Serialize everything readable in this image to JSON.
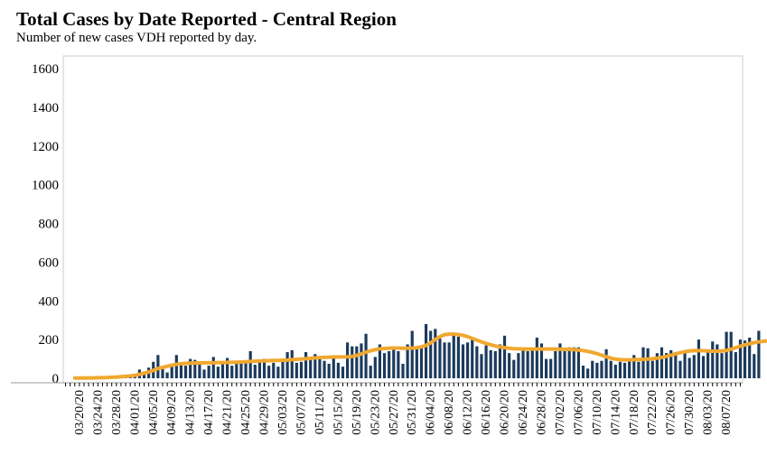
{
  "title": "Total Cases by Date Reported - Central Region",
  "subtitle": "Number of new cases VDH reported by day.",
  "chart_data": {
    "type": "bar",
    "title": "Total Cases by Date Reported - Central Region",
    "subtitle": "Number of new cases VDH reported by day.",
    "xlabel": "",
    "ylabel": "",
    "ylim": [
      0,
      1600
    ],
    "yticks": [
      0,
      200,
      400,
      600,
      800,
      1000,
      1200,
      1400,
      1600
    ],
    "grid": false,
    "legend": "none",
    "x_start": "03/17/20",
    "x_end": "08/10/20",
    "xtick_labels": [
      "03/20/20",
      "03/24/20",
      "03/28/20",
      "04/01/20",
      "04/05/20",
      "04/09/20",
      "04/13/20",
      "04/17/20",
      "04/21/20",
      "04/25/20",
      "04/29/20",
      "05/03/20",
      "05/07/20",
      "05/11/20",
      "05/15/20",
      "05/19/20",
      "05/23/20",
      "05/27/20",
      "05/31/20",
      "06/04/20",
      "06/08/20",
      "06/12/20",
      "06/16/20",
      "06/20/20",
      "06/24/20",
      "06/28/20",
      "07/02/20",
      "07/06/20",
      "07/10/20",
      "07/14/20",
      "07/18/20",
      "07/22/20",
      "07/26/20",
      "07/30/20",
      "08/03/20",
      "08/07/20"
    ],
    "bar_color": "#1b3a5c",
    "line_color": "#f0a830",
    "series": [
      {
        "name": "",
        "type": "bar",
        "first_date": "03/19/20",
        "values": [
          2,
          1,
          2,
          2,
          3,
          4,
          6,
          5,
          7,
          8,
          10,
          14,
          18,
          16,
          45,
          35,
          55,
          85,
          120,
          60,
          30,
          75,
          120,
          70,
          65,
          100,
          95,
          85,
          45,
          65,
          110,
          60,
          75,
          105,
          65,
          75,
          85,
          90,
          140,
          70,
          95,
          100,
          65,
          80,
          60,
          100,
          135,
          145,
          80,
          85,
          135,
          110,
          125,
          110,
          90,
          75,
          110,
          80,
          60,
          185,
          165,
          165,
          180,
          230,
          65,
          110,
          175,
          130,
          140,
          150,
          140,
          75,
          175,
          245,
          150,
          155,
          280,
          245,
          255,
          205,
          185,
          185,
          225,
          215,
          175,
          185,
          200,
          165,
          125,
          170,
          145,
          140,
          175,
          220,
          130,
          95,
          130,
          150,
          140,
          150,
          210,
          180,
          100,
          100,
          140,
          180,
          140,
          160,
          160,
          160,
          65,
          50,
          90,
          80,
          90,
          150,
          90,
          70,
          85,
          80,
          100,
          120,
          85,
          160,
          155,
          90,
          130,
          160,
          130,
          145,
          135,
          90,
          130,
          105,
          120,
          200,
          115,
          145,
          190,
          175,
          130,
          240,
          240,
          135,
          200,
          195,
          210,
          125,
          245
        ]
      },
      {
        "name": "",
        "type": "line",
        "first_date": "03/19/20",
        "values": [
          1,
          1,
          1,
          2,
          2,
          3,
          3,
          4,
          5,
          6,
          8,
          10,
          12,
          15,
          20,
          26,
          33,
          41,
          50,
          56,
          62,
          67,
          72,
          75,
          77,
          78,
          79,
          79,
          80,
          80,
          80,
          81,
          81,
          82,
          82,
          83,
          84,
          85,
          87,
          88,
          89,
          90,
          91,
          92,
          92,
          93,
          94,
          96,
          98,
          99,
          101,
          103,
          105,
          107,
          108,
          109,
          110,
          110,
          110,
          111,
          113,
          118,
          126,
          135,
          142,
          148,
          152,
          154,
          155,
          156,
          156,
          155,
          155,
          156,
          158,
          162,
          170,
          183,
          200,
          215,
          225,
          228,
          228,
          226,
          222,
          215,
          206,
          197,
          188,
          180,
          173,
          167,
          162,
          158,
          155,
          153,
          152,
          151,
          151,
          151,
          151,
          151,
          151,
          151,
          151,
          150,
          150,
          149,
          148,
          146,
          143,
          139,
          134,
          127,
          119,
          111,
          104,
          99,
          96,
          95,
          95,
          96,
          97,
          98,
          99,
          101,
          104,
          108,
          113,
          119,
          126,
          132,
          137,
          141,
          143,
          143,
          142,
          141,
          140,
          140,
          141,
          144,
          150,
          158,
          166,
          173,
          179,
          184,
          188,
          191,
          193,
          194,
          195
        ]
      }
    ]
  }
}
